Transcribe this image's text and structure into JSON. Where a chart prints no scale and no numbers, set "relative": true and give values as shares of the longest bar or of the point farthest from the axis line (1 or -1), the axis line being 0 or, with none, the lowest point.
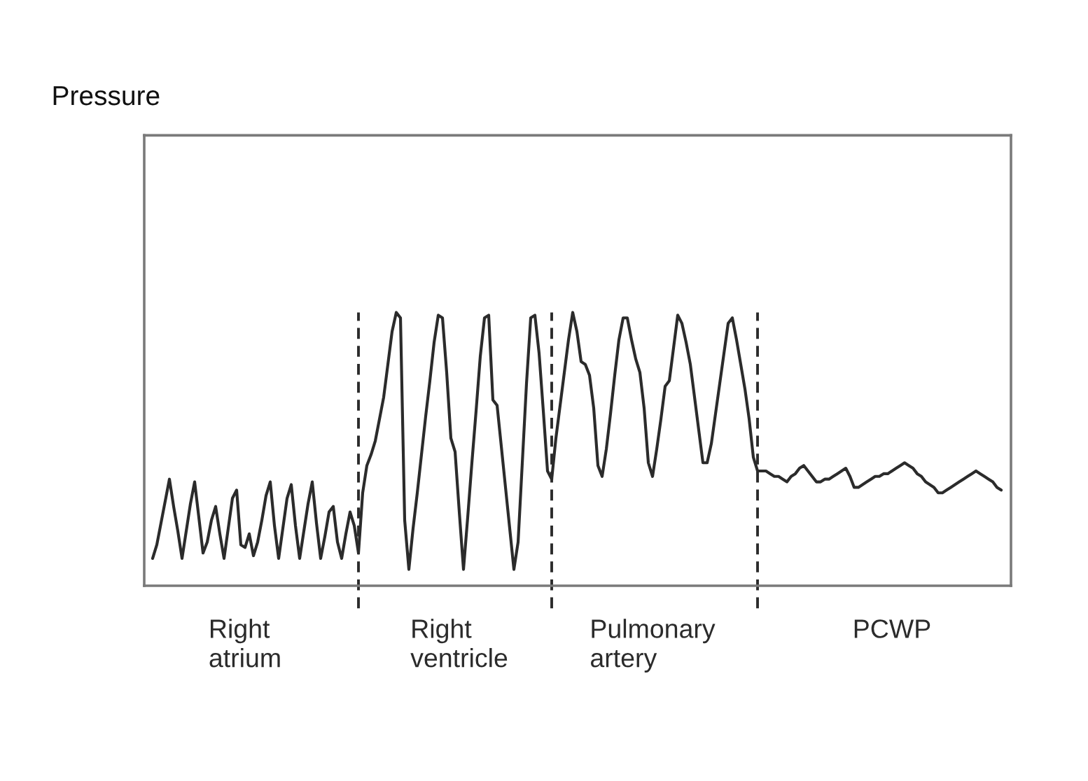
{
  "chart_data": {
    "type": "line",
    "relative": true,
    "tick_labels": "x",
    "annotations": [
      "Pressure"
    ],
    "categories": [
      null,
      null,
      null,
      null,
      null,
      null,
      null,
      null,
      null,
      null,
      null,
      null,
      null,
      null,
      null,
      null,
      null,
      null,
      null,
      null,
      null,
      null,
      "Right\natrium",
      null,
      null,
      null,
      null,
      null,
      null,
      null,
      null,
      null,
      null,
      null,
      null,
      null,
      null,
      null,
      null,
      null,
      null,
      null,
      null,
      null,
      null,
      null,
      null,
      null,
      null,
      null,
      null,
      null,
      null,
      null,
      null,
      null,
      null,
      null,
      null,
      null,
      null,
      null,
      null,
      null,
      null,
      null,
      null,
      null,
      null,
      null,
      null,
      null,
      null,
      "Right\nventricle",
      null,
      null,
      null,
      null,
      null,
      null,
      null,
      null,
      null,
      null,
      null,
      null,
      null,
      null,
      null,
      null,
      null,
      null,
      null,
      null,
      null,
      null,
      null,
      null,
      null,
      null,
      null,
      null,
      null,
      null,
      null,
      null,
      null,
      null,
      null,
      null,
      null,
      null,
      null,
      null,
      null,
      null,
      null,
      null,
      null,
      "Pulmonary\nartery",
      null,
      null,
      null,
      null,
      null,
      null,
      null,
      null,
      null,
      null,
      null,
      null,
      null,
      null,
      null,
      null,
      null,
      null,
      null,
      null,
      null,
      null,
      null,
      null,
      null,
      null,
      null,
      null,
      null,
      null,
      null,
      null,
      null,
      null,
      null,
      null,
      null,
      null,
      null,
      null,
      null,
      null,
      null,
      null,
      null,
      null,
      null,
      null,
      null,
      null,
      null,
      null,
      null,
      null,
      null,
      null,
      "PCWP",
      null,
      null,
      null,
      null,
      null,
      null,
      null,
      null,
      null,
      null,
      null,
      null,
      null,
      null,
      null,
      null,
      null,
      null,
      null,
      null,
      null,
      null,
      null,
      null,
      null,
      null
    ],
    "series": [
      {
        "color": "#2b2b2b",
        "values": [
          0.1,
          0.15,
          0.23,
          0.31,
          0.39,
          0.29,
          0.2,
          0.1,
          0.2,
          0.3,
          0.38,
          0.25,
          0.12,
          0.16,
          0.24,
          0.29,
          0.19,
          0.1,
          0.21,
          0.32,
          0.35,
          0.15,
          0.14,
          0.19,
          0.11,
          0.16,
          0.24,
          0.33,
          0.38,
          0.22,
          0.1,
          0.21,
          0.32,
          0.37,
          0.22,
          0.1,
          0.2,
          0.3,
          0.38,
          0.23,
          0.1,
          0.18,
          0.27,
          0.29,
          0.16,
          0.1,
          0.19,
          0.27,
          0.22,
          0.12,
          null,
          null,
          null,
          null,
          null,
          null,
          null,
          null,
          null,
          null,
          null,
          null,
          null,
          null,
          null,
          null,
          null,
          null,
          null,
          null,
          null,
          null,
          null,
          null,
          null,
          null,
          null,
          null,
          null,
          null,
          null,
          null,
          null,
          null,
          null,
          null,
          null,
          null,
          null,
          null,
          null,
          null,
          null,
          null,
          null,
          null,
          null,
          null,
          null,
          null,
          null,
          null,
          null,
          null,
          null,
          null,
          null,
          null,
          null,
          null,
          null,
          null,
          null,
          null,
          null,
          null,
          null,
          null,
          null,
          null,
          null,
          null,
          null,
          null,
          null,
          null,
          null,
          null,
          null,
          null,
          null,
          null,
          null,
          null,
          null,
          null,
          null,
          null,
          null,
          null,
          null,
          null,
          null,
          null,
          null,
          null,
          null,
          null,
          null,
          null,
          null,
          null,
          null,
          null,
          null,
          null,
          null,
          null,
          null,
          null,
          null,
          null,
          null,
          null,
          null,
          null,
          null,
          null,
          null,
          null,
          null,
          null,
          null,
          null,
          null,
          null,
          null,
          null,
          null,
          null,
          null,
          null,
          null,
          null,
          null,
          null,
          null,
          null,
          null,
          null,
          null,
          null,
          null,
          null,
          null,
          null,
          null,
          null,
          null,
          null,
          null,
          null,
          null
        ]
      },
      {
        "color": "#2b2b2b",
        "values": [
          null,
          null,
          null,
          null,
          null,
          null,
          null,
          null,
          null,
          null,
          null,
          null,
          null,
          null,
          null,
          null,
          null,
          null,
          null,
          null,
          null,
          null,
          null,
          null,
          null,
          null,
          null,
          null,
          null,
          null,
          null,
          null,
          null,
          null,
          null,
          null,
          null,
          null,
          null,
          null,
          null,
          null,
          null,
          null,
          null,
          null,
          null,
          null,
          null,
          0.12,
          0.34,
          0.44,
          0.48,
          0.53,
          0.61,
          0.69,
          0.81,
          0.93,
          1.0,
          0.98,
          0.24,
          0.06,
          0.21,
          0.34,
          0.48,
          0.62,
          0.75,
          0.89,
          0.99,
          0.98,
          0.78,
          0.54,
          0.49,
          0.27,
          0.06,
          0.25,
          0.45,
          0.64,
          0.84,
          0.98,
          0.99,
          0.68,
          0.66,
          0.51,
          0.36,
          0.21,
          0.06,
          0.16,
          0.45,
          0.74,
          0.98,
          0.99,
          0.85,
          0.64,
          0.42,
          0.39,
          null,
          null,
          null,
          null,
          null,
          null,
          null,
          null,
          null,
          null,
          null,
          null,
          null,
          null,
          null,
          null,
          null,
          null,
          null,
          null,
          null,
          null,
          null,
          null,
          null,
          null,
          null,
          null,
          null,
          null,
          null,
          null,
          null,
          null,
          null,
          null,
          null,
          null,
          null,
          null,
          null,
          null,
          null,
          null,
          null,
          null,
          null,
          null,
          null,
          null,
          null,
          null,
          null,
          null,
          null,
          null,
          null,
          null,
          null,
          null,
          null,
          null,
          null,
          null,
          null,
          null,
          null,
          null,
          null,
          null,
          null,
          null,
          null,
          null,
          null,
          null,
          null,
          null,
          null,
          null,
          null,
          null,
          null,
          null,
          null,
          null,
          null,
          null,
          null,
          null,
          null,
          null,
          null,
          null,
          null,
          null,
          null,
          null,
          null,
          null,
          null,
          null,
          null,
          null,
          null,
          null,
          null
        ]
      },
      {
        "color": "#2b2b2b",
        "values": [
          null,
          null,
          null,
          null,
          null,
          null,
          null,
          null,
          null,
          null,
          null,
          null,
          null,
          null,
          null,
          null,
          null,
          null,
          null,
          null,
          null,
          null,
          null,
          null,
          null,
          null,
          null,
          null,
          null,
          null,
          null,
          null,
          null,
          null,
          null,
          null,
          null,
          null,
          null,
          null,
          null,
          null,
          null,
          null,
          null,
          null,
          null,
          null,
          null,
          null,
          null,
          null,
          null,
          null,
          null,
          null,
          null,
          null,
          null,
          null,
          null,
          null,
          null,
          null,
          null,
          null,
          null,
          null,
          null,
          null,
          null,
          null,
          null,
          null,
          null,
          null,
          null,
          null,
          null,
          null,
          null,
          null,
          null,
          null,
          null,
          null,
          null,
          null,
          null,
          null,
          null,
          null,
          null,
          null,
          null,
          0.39,
          0.54,
          0.66,
          0.78,
          0.9,
          1.0,
          0.93,
          0.82,
          0.81,
          0.77,
          0.65,
          0.44,
          0.4,
          0.5,
          0.63,
          0.77,
          0.9,
          0.98,
          0.98,
          0.9,
          0.83,
          0.78,
          0.65,
          0.45,
          0.4,
          0.5,
          0.61,
          0.73,
          0.75,
          0.87,
          0.99,
          0.96,
          0.89,
          0.81,
          0.69,
          0.57,
          0.45,
          0.45,
          0.52,
          0.63,
          0.74,
          0.85,
          0.96,
          0.98,
          0.9,
          0.81,
          0.72,
          0.61,
          0.47,
          0.42,
          null,
          null,
          null,
          null,
          null,
          null,
          null,
          null,
          null,
          null,
          null,
          null,
          null,
          null,
          null,
          null,
          null,
          null,
          null,
          null,
          null,
          null,
          null,
          null,
          null,
          null,
          null,
          null,
          null,
          null,
          null,
          null,
          null,
          null,
          null,
          null,
          null,
          null,
          null,
          null,
          null,
          null,
          null,
          null,
          null,
          null,
          null,
          null,
          null,
          null,
          null,
          null,
          null,
          null,
          null,
          null,
          null,
          null
        ]
      },
      {
        "color": "#2b2b2b",
        "values": [
          null,
          null,
          null,
          null,
          null,
          null,
          null,
          null,
          null,
          null,
          null,
          null,
          null,
          null,
          null,
          null,
          null,
          null,
          null,
          null,
          null,
          null,
          null,
          null,
          null,
          null,
          null,
          null,
          null,
          null,
          null,
          null,
          null,
          null,
          null,
          null,
          null,
          null,
          null,
          null,
          null,
          null,
          null,
          null,
          null,
          null,
          null,
          null,
          null,
          null,
          null,
          null,
          null,
          null,
          null,
          null,
          null,
          null,
          null,
          null,
          null,
          null,
          null,
          null,
          null,
          null,
          null,
          null,
          null,
          null,
          null,
          null,
          null,
          null,
          null,
          null,
          null,
          null,
          null,
          null,
          null,
          null,
          null,
          null,
          null,
          null,
          null,
          null,
          null,
          null,
          null,
          null,
          null,
          null,
          null,
          null,
          null,
          null,
          null,
          null,
          null,
          null,
          null,
          null,
          null,
          null,
          null,
          null,
          null,
          null,
          null,
          null,
          null,
          null,
          null,
          null,
          null,
          null,
          null,
          null,
          null,
          null,
          null,
          null,
          null,
          null,
          null,
          null,
          null,
          null,
          null,
          null,
          null,
          null,
          null,
          null,
          null,
          null,
          null,
          null,
          null,
          null,
          null,
          null,
          0.42,
          0.42,
          0.42,
          0.41,
          0.4,
          0.4,
          0.39,
          0.38,
          0.4,
          0.41,
          0.43,
          0.44,
          0.42,
          0.4,
          0.38,
          0.38,
          0.39,
          0.39,
          0.4,
          0.41,
          0.42,
          0.43,
          0.4,
          0.36,
          0.36,
          0.37,
          0.38,
          0.39,
          0.4,
          0.4,
          0.41,
          0.41,
          0.42,
          0.43,
          0.44,
          0.45,
          0.44,
          0.43,
          0.41,
          0.4,
          0.38,
          0.37,
          0.36,
          0.34,
          0.34,
          0.35,
          0.36,
          0.37,
          0.38,
          0.39,
          0.4,
          0.41,
          0.42,
          0.41,
          0.4,
          0.39,
          0.38,
          0.36,
          0.35
        ]
      }
    ]
  }
}
